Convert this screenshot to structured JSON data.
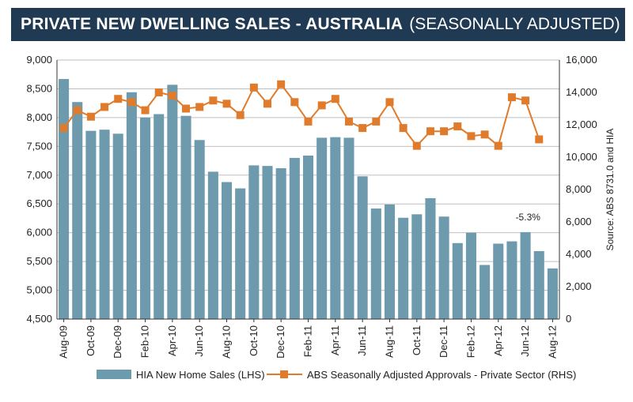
{
  "header": {
    "title": "PRIVATE NEW DWELLING SALES -  AUSTRALIA",
    "subtitle": "(SEASONALLY ADJUSTED)"
  },
  "chart_data": {
    "type": "bar+line",
    "categories": [
      "Aug-09",
      "Sep-09",
      "Oct-09",
      "Nov-09",
      "Dec-09",
      "Jan-10",
      "Feb-10",
      "Mar-10",
      "Apr-10",
      "May-10",
      "Jun-10",
      "Jul-10",
      "Aug-10",
      "Sep-10",
      "Oct-10",
      "Nov-10",
      "Dec-10",
      "Jan-11",
      "Feb-11",
      "Mar-11",
      "Apr-11",
      "May-11",
      "Jun-11",
      "Jul-11",
      "Aug-11",
      "Sep-11",
      "Oct-11",
      "Nov-11",
      "Dec-11",
      "Jan-12",
      "Feb-12",
      "Mar-12",
      "Apr-12",
      "May-12",
      "Jun-12",
      "Jul-12",
      "Aug-12"
    ],
    "x_tick_labels": [
      "Aug-09",
      "Oct-09",
      "Dec-09",
      "Feb-10",
      "Apr-10",
      "Jun-10",
      "Aug-10",
      "Oct-10",
      "Dec-10",
      "Feb-11",
      "Apr-11",
      "Jun-11",
      "Aug-11",
      "Oct-11",
      "Dec-11",
      "Feb-12",
      "Apr-12",
      "Jun-12",
      "Aug-12"
    ],
    "series": [
      {
        "name": "HIA New Home Sales (LHS)",
        "type": "bar",
        "axis": "left",
        "color": "#6d9aac",
        "values": [
          8670,
          8270,
          7770,
          7790,
          7720,
          8440,
          8000,
          8060,
          8570,
          8030,
          7610,
          7060,
          6880,
          6770,
          7170,
          7160,
          7120,
          7300,
          7340,
          7650,
          7660,
          7650,
          6980,
          6420,
          6490,
          6260,
          6320,
          6600,
          6280,
          5820,
          6000,
          5440,
          5810,
          5850,
          6010,
          5680,
          5380
        ]
      },
      {
        "name": "ABS Seasonally Adjusted Approvals - Private Sector (RHS)",
        "type": "line",
        "axis": "right",
        "color": "#e07b2b",
        "values": [
          11800,
          12900,
          12500,
          13100,
          13600,
          13400,
          12900,
          14000,
          13800,
          13000,
          13100,
          13500,
          13300,
          12600,
          14300,
          13300,
          14500,
          13400,
          12200,
          13200,
          13600,
          12200,
          11800,
          12200,
          13400,
          11800,
          10700,
          11600,
          11600,
          11900,
          11300,
          11400,
          10700,
          13700,
          13500,
          11100,
          null
        ]
      }
    ],
    "y_left": {
      "min": 4500,
      "max": 9000,
      "ticks": [
        "4,500",
        "5,000",
        "5,500",
        "6,000",
        "6,500",
        "7,000",
        "7,500",
        "8,000",
        "8,500",
        "9,000"
      ]
    },
    "y_right": {
      "min": 0,
      "max": 16000,
      "ticks": [
        "0",
        "2,000",
        "4,000",
        "6,000",
        "8,000",
        "10,000",
        "12,000",
        "14,000",
        "16,000"
      ]
    },
    "annotation": "-5.3%",
    "source": "Source: ABS 8731.0 and HIA",
    "legend_position": "bottom"
  }
}
